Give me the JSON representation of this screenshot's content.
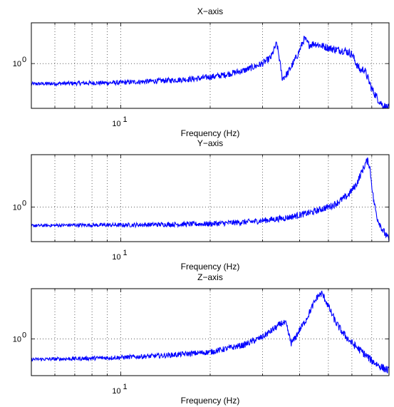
{
  "chart_data": [
    {
      "type": "line",
      "title": "X−axis",
      "xlabel": "Frequency (Hz)",
      "ylabel": "",
      "xscale": "log",
      "yscale": "log",
      "xlim": [
        5,
        80
      ],
      "ylim": [
        0.35,
        2.6
      ],
      "grid": "dotted, major and minor x, major y",
      "x_tick_labels": [
        {
          "value": 10,
          "label": "10",
          "sup": "1"
        }
      ],
      "y_tick_labels": [
        {
          "value": 1,
          "label": "10",
          "sup": "0"
        }
      ],
      "color": "#0000ff",
      "x": [
        5,
        7,
        10,
        14,
        18,
        22,
        26,
        30,
        32,
        33,
        33.5,
        34,
        35,
        36.5,
        38,
        39.5,
        40.5,
        41.5,
        43,
        45,
        48,
        52,
        57,
        60,
        62,
        64,
        66,
        68,
        70,
        72,
        74,
        76,
        78,
        80
      ],
      "values": [
        0.62,
        0.63,
        0.64,
        0.67,
        0.7,
        0.76,
        0.85,
        1.0,
        1.15,
        1.45,
        1.6,
        1.25,
        0.7,
        0.8,
        1.0,
        1.25,
        1.5,
        1.8,
        1.55,
        1.6,
        1.5,
        1.4,
        1.35,
        1.25,
        1.0,
        0.85,
        0.88,
        0.7,
        0.55,
        0.48,
        0.42,
        0.38,
        0.36,
        0.35
      ]
    },
    {
      "type": "line",
      "title": "Y−axis",
      "xlabel": "Frequency (Hz)",
      "ylabel": "",
      "xscale": "log",
      "yscale": "log",
      "xlim": [
        5,
        80
      ],
      "ylim": [
        0.4,
        4.0
      ],
      "grid": "dotted, major and minor x, major y",
      "x_tick_labels": [
        {
          "value": 10,
          "label": "10",
          "sup": "1"
        }
      ],
      "y_tick_labels": [
        {
          "value": 1,
          "label": "10",
          "sup": "0"
        }
      ],
      "color": "#0000ff",
      "x": [
        5,
        7,
        10,
        14,
        20,
        28,
        36,
        44,
        52,
        58,
        62,
        65,
        67,
        68,
        69,
        70,
        71,
        73,
        76,
        80
      ],
      "values": [
        0.61,
        0.62,
        0.62,
        0.63,
        0.64,
        0.68,
        0.75,
        0.87,
        1.05,
        1.35,
        1.8,
        2.6,
        3.3,
        3.4,
        2.8,
        1.8,
        1.2,
        0.75,
        0.55,
        0.42
      ]
    },
    {
      "type": "line",
      "title": "Z−axis",
      "xlabel": "Frequency (Hz)",
      "ylabel": "",
      "xscale": "log",
      "yscale": "log",
      "xlim": [
        5,
        80
      ],
      "ylim": [
        0.4,
        3.5
      ],
      "grid": "dotted, major and minor x, major y",
      "x_tick_labels": [
        {
          "value": 10,
          "label": "10",
          "sup": "1"
        }
      ],
      "y_tick_labels": [
        {
          "value": 1,
          "label": "10",
          "sup": "0"
        }
      ],
      "color": "#0000ff",
      "x": [
        5,
        7,
        10,
        14,
        20,
        26,
        30,
        33,
        35,
        36,
        36.8,
        37.5,
        38.5,
        40,
        42,
        44,
        46,
        47.5,
        49,
        51,
        53,
        56,
        60,
        65,
        70,
        75,
        80
      ],
      "values": [
        0.6,
        0.61,
        0.63,
        0.66,
        0.72,
        0.86,
        1.05,
        1.3,
        1.5,
        1.45,
        1.1,
        0.9,
        1.0,
        1.25,
        1.6,
        2.2,
        2.9,
        3.1,
        2.6,
        1.95,
        1.5,
        1.15,
        0.9,
        0.72,
        0.58,
        0.5,
        0.45
      ]
    }
  ]
}
